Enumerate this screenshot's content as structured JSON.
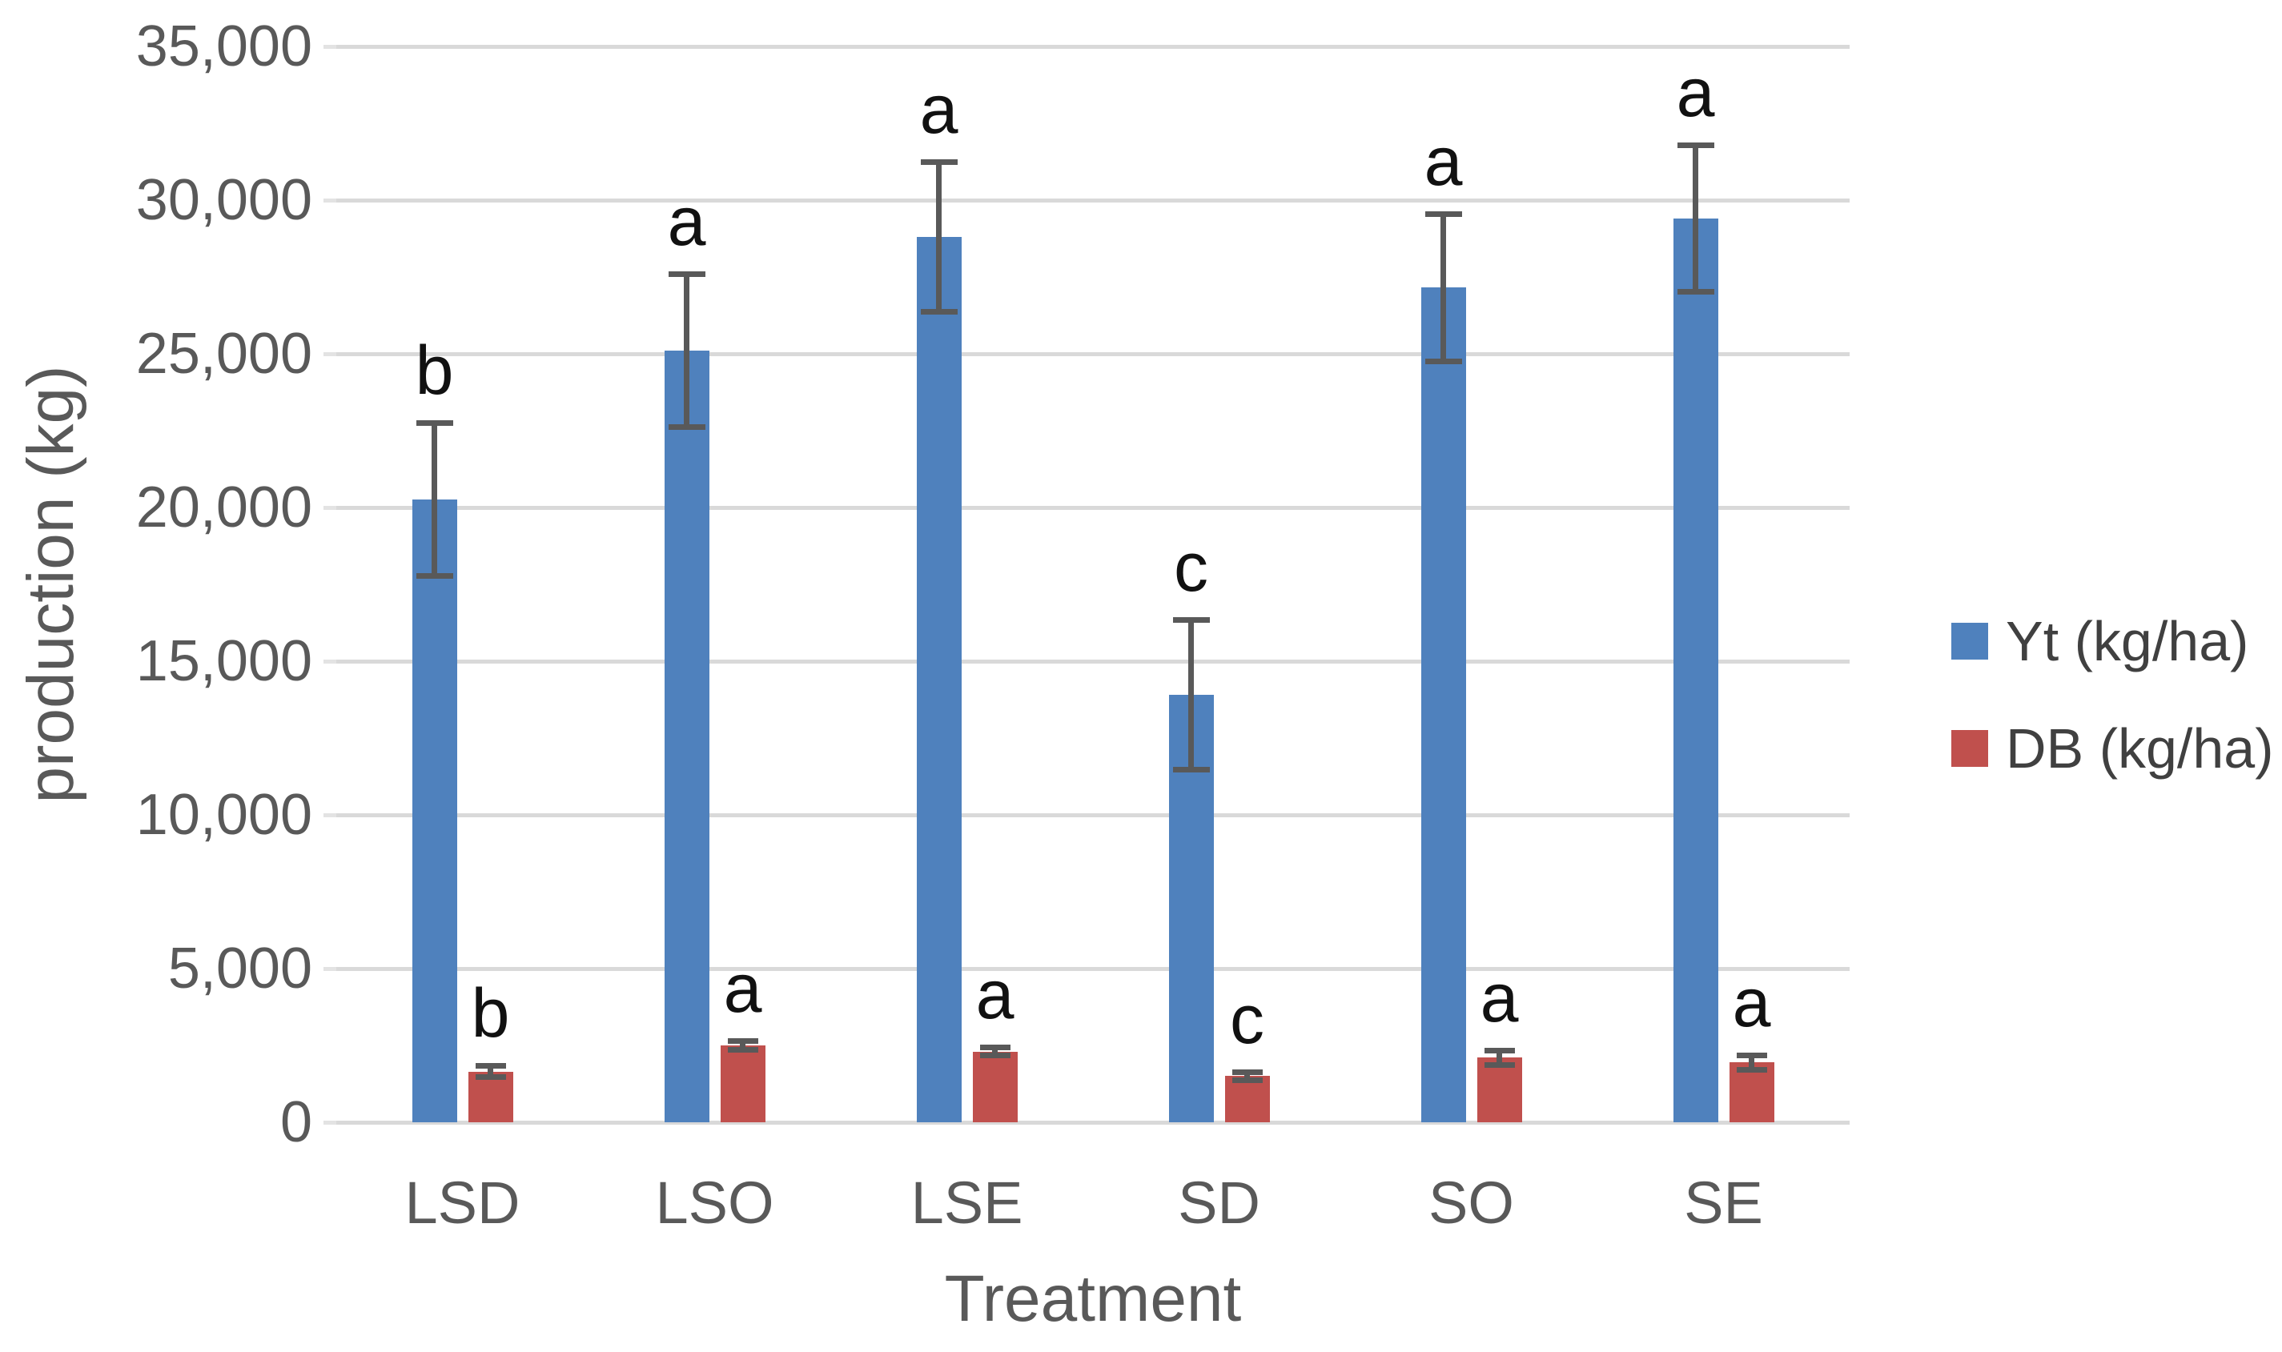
{
  "chart_data": {
    "type": "bar",
    "title": "",
    "xlabel": "Treatment",
    "ylabel": "production (kg)",
    "categories": [
      "LSD",
      "LSO",
      "LSE",
      "SD",
      "SO",
      "SE"
    ],
    "series": [
      {
        "name": "Yt (kg/ha)",
        "color": "#4f81bd",
        "values": [
          20250,
          25100,
          28800,
          13900,
          27150,
          29400
        ],
        "errors": [
          2500,
          2500,
          2450,
          2450,
          2400,
          2400
        ],
        "letters": [
          "b",
          "a",
          "a",
          "c",
          "a",
          "a"
        ]
      },
      {
        "name": "DB (kg/ha)",
        "color": "#c0504d",
        "values": [
          1650,
          2500,
          2300,
          1500,
          2100,
          1950
        ],
        "errors": [
          200,
          150,
          150,
          150,
          250,
          250
        ],
        "letters": [
          "b",
          "a",
          "a",
          "c",
          "a",
          "a"
        ]
      }
    ],
    "ylim": [
      0,
      35000
    ],
    "ytick_step": 5000,
    "ytick_labels": [
      "0",
      "5,000",
      "10,000",
      "15,000",
      "20,000",
      "25,000",
      "30,000",
      "35,000"
    ],
    "grid": true,
    "legend_position": "right",
    "annotation_note": "letters above bars denote significance groups",
    "error_bar_color": "#595959",
    "gridline_color": "#d9d9d9",
    "axis_text_color": "#595959"
  }
}
